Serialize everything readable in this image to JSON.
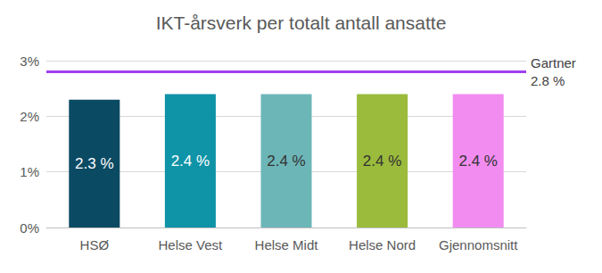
{
  "chart_data": {
    "type": "bar",
    "title": "IKT-årsverk per totalt antall ansatte",
    "categories": [
      "HSØ",
      "Helse Vest",
      "Helse Midt",
      "Helse Nord",
      "Gjennomsnitt"
    ],
    "values": [
      2.3,
      2.4,
      2.4,
      2.4,
      2.4
    ],
    "value_labels": [
      "2.3 %",
      "2.4 %",
      "2.4 %",
      "2.4 %",
      "2.4 %"
    ],
    "colors": [
      "#0b4a63",
      "#0e93a7",
      "#6db6b8",
      "#9bbb3c",
      "#f28cf0"
    ],
    "data_labels": true,
    "ylim": [
      0,
      3
    ],
    "yticks": [
      {
        "value": 0,
        "label": "0%"
      },
      {
        "value": 1,
        "label": "1%"
      },
      {
        "value": 2,
        "label": "2%"
      },
      {
        "value": 3,
        "label": "3%"
      }
    ],
    "grid": true,
    "reference": {
      "value": 2.8,
      "label": "Gartner\n2.8 %",
      "color": "#a040f0"
    }
  }
}
